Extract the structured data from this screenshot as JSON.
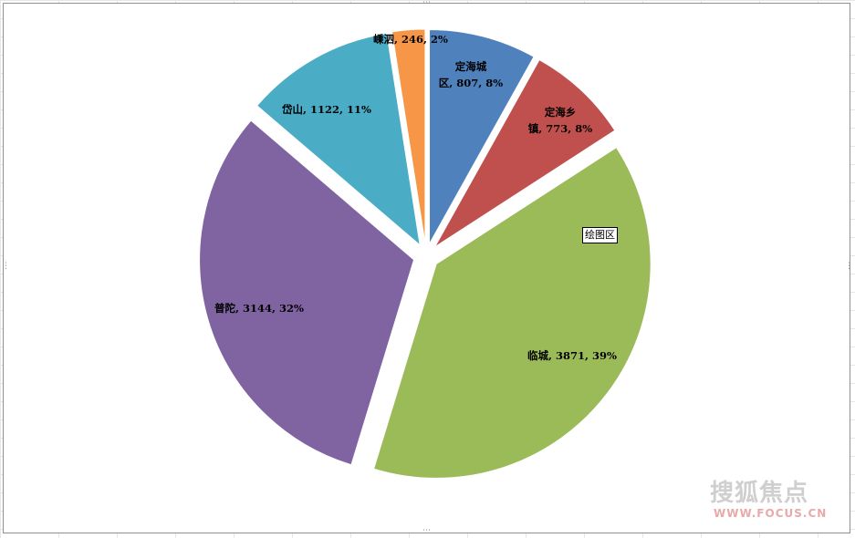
{
  "chart_data": {
    "type": "pie",
    "title": "",
    "categories": [
      "定海城区",
      "定海乡镇",
      "临城",
      "普陀",
      "岱山",
      "嵊泗"
    ],
    "values": [
      807,
      773,
      3871,
      3144,
      1122,
      246
    ],
    "percentages": [
      "8%",
      "8%",
      "39%",
      "32%",
      "11%",
      "2%"
    ],
    "colors": [
      "#4f81bd",
      "#c0504d",
      "#9bbb59",
      "#8064a2",
      "#4bacc6",
      "#f79646"
    ],
    "data_labels": [
      [
        "定海城",
        "区, 807, 8%"
      ],
      [
        "定海乡",
        "镇, 773, 8%"
      ],
      [
        "临城, 3871, 39%"
      ],
      [
        "普陀, 3144, 32%"
      ],
      [
        "岱山, 1122, 11%"
      ],
      [
        "嵊泗, 246, 2%"
      ]
    ],
    "exploded": true,
    "legend": "none"
  },
  "ui": {
    "plot_area_tooltip": "绘图区"
  },
  "watermark": {
    "cn": "搜狐焦点",
    "en": "WWW.FOCUS.CN"
  }
}
